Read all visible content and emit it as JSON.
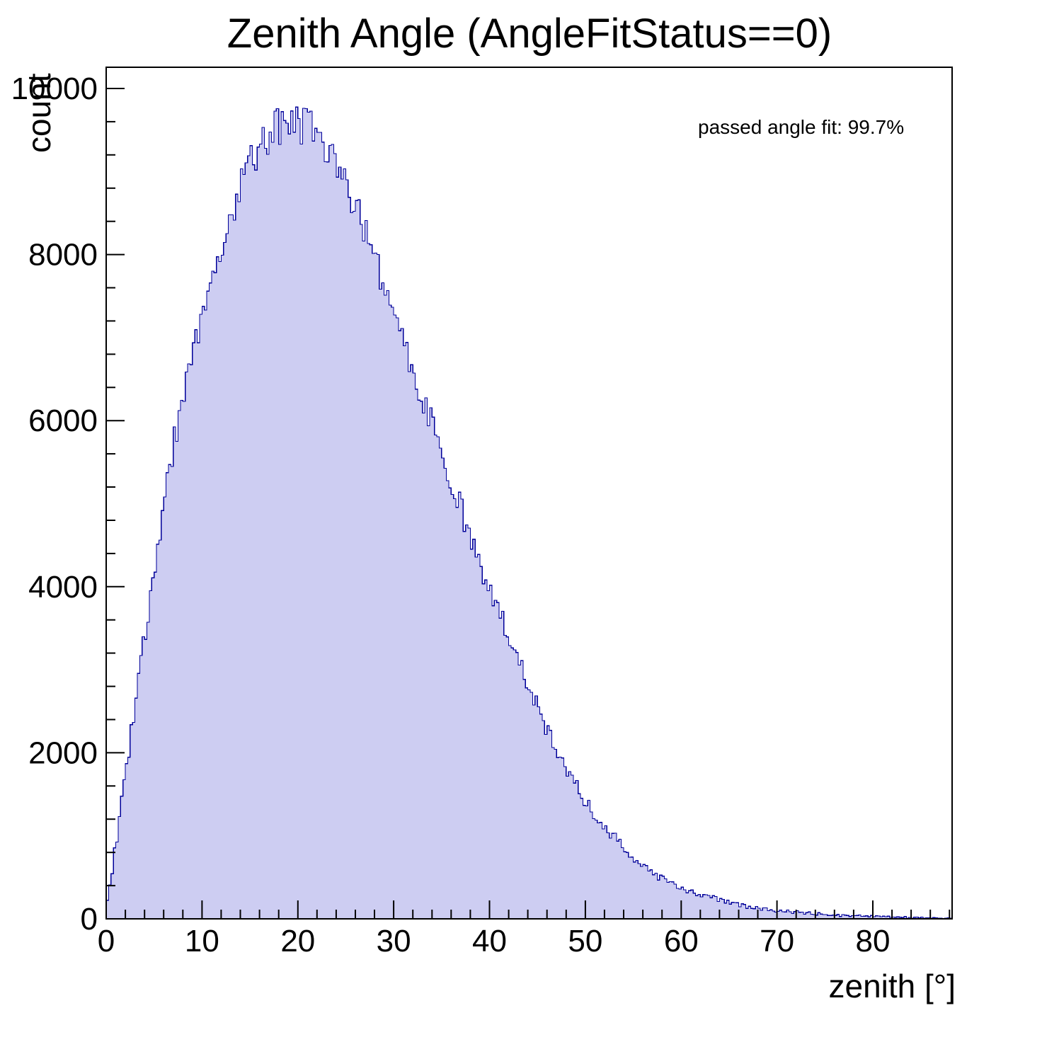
{
  "title": "Zenith Angle (AngleFitStatus==0)",
  "annotation": "passed angle fit: 99.7%",
  "colors": {
    "background": "#ffffff",
    "histogram_fill": "#cdcdf2",
    "histogram_line": "#000099",
    "axis": "#000000",
    "text": "#000000"
  },
  "chart_data": {
    "type": "bar",
    "subtype": "filled-step-histogram",
    "title": "Zenith Angle (AngleFitStatus==0)",
    "xlabel": "zenith [°]",
    "ylabel": "count",
    "annotation": "passed angle fit: 99.7%",
    "grid": false,
    "legend": "none",
    "xlim": [
      0,
      88.3
    ],
    "ylim": [
      0,
      10000
    ],
    "xticks": [
      0,
      10,
      20,
      30,
      40,
      50,
      60,
      70,
      80
    ],
    "yticks": [
      0,
      2000,
      4000,
      6000,
      8000,
      10000
    ],
    "x_start_deg": 0,
    "x_step_deg": 1,
    "counts_envelope_note": "histogram envelope (counts) sampled at 1-degree intervals from 0 to 88 deg; peak ~9600 at ~19 deg",
    "counts_envelope": [
      100,
      900,
      1700,
      2550,
      3400,
      4200,
      5000,
      5700,
      6300,
      6800,
      7250,
      7700,
      8100,
      8500,
      8850,
      9100,
      9300,
      9450,
      9550,
      9600,
      9580,
      9520,
      9450,
      9320,
      9130,
      8900,
      8620,
      8320,
      8000,
      7650,
      7280,
      6950,
      6620,
      6280,
      5950,
      5600,
      5280,
      4950,
      4620,
      4300,
      4000,
      3700,
      3420,
      3130,
      2850,
      2550,
      2280,
      2050,
      1830,
      1620,
      1430,
      1270,
      1120,
      980,
      860,
      760,
      660,
      570,
      490,
      430,
      375,
      330,
      290,
      255,
      225,
      198,
      174,
      152,
      133,
      117,
      102,
      90,
      79,
      69,
      61,
      53,
      47,
      41,
      36,
      32,
      28,
      24,
      21,
      18,
      16,
      14,
      12,
      10,
      9
    ],
    "peak": {
      "x_deg": 19,
      "count": 9600
    }
  }
}
